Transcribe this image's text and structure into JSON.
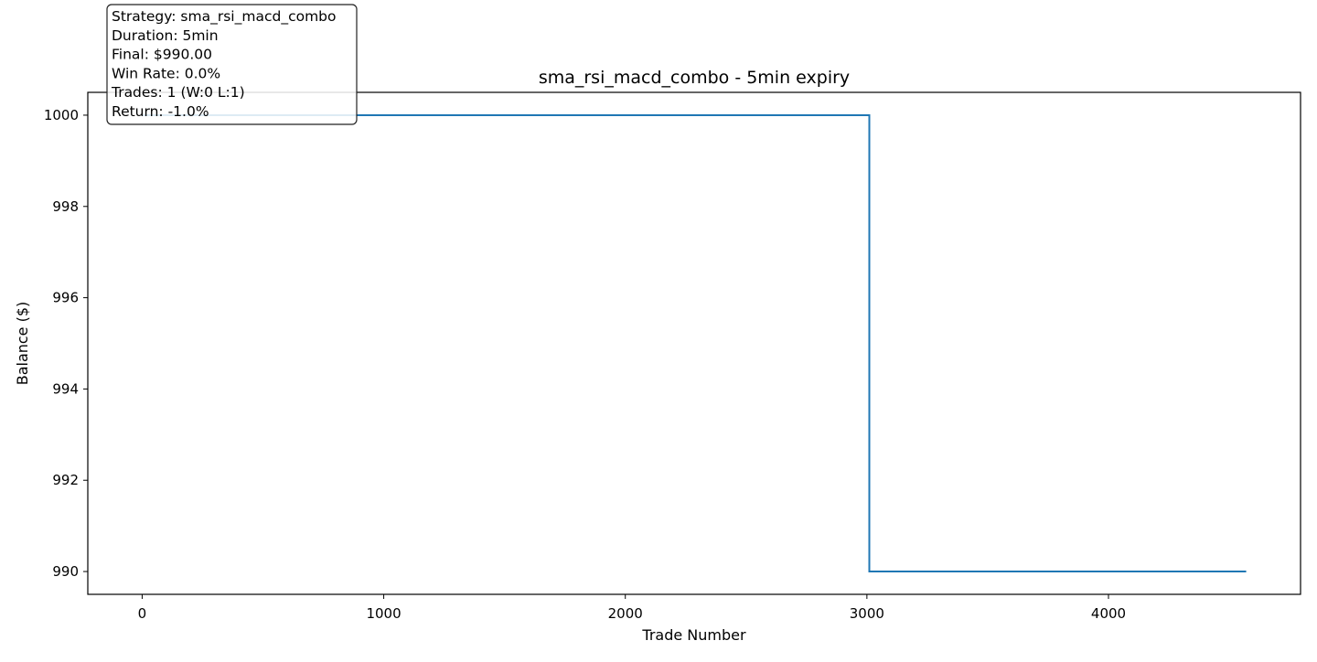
{
  "chart_data": {
    "type": "line",
    "title": "sma_rsi_macd_combo - 5min expiry",
    "xlabel": "Trade Number",
    "ylabel": "Balance ($)",
    "xlim": [
      -225,
      4795
    ],
    "ylim": [
      989.5,
      1000.5
    ],
    "xticks": [
      0,
      1000,
      2000,
      3000,
      4000
    ],
    "yticks": [
      990,
      992,
      994,
      996,
      998,
      1000
    ],
    "grid": false,
    "line_style": "step",
    "series": [
      {
        "color": "#1f77b4",
        "points": [
          {
            "x": 0,
            "y": 1000
          },
          {
            "x": 3010,
            "y": 1000
          },
          {
            "x": 3010,
            "y": 990
          },
          {
            "x": 4570,
            "y": 990
          }
        ]
      }
    ],
    "annotation": {
      "placement": "top-left",
      "lines": [
        "Strategy: sma_rsi_macd_combo",
        "Duration: 5min",
        "Final: $990.00",
        "Win Rate: 0.0%",
        "Trades: 1 (W:0 L:1)",
        "Return: -1.0%"
      ]
    }
  }
}
